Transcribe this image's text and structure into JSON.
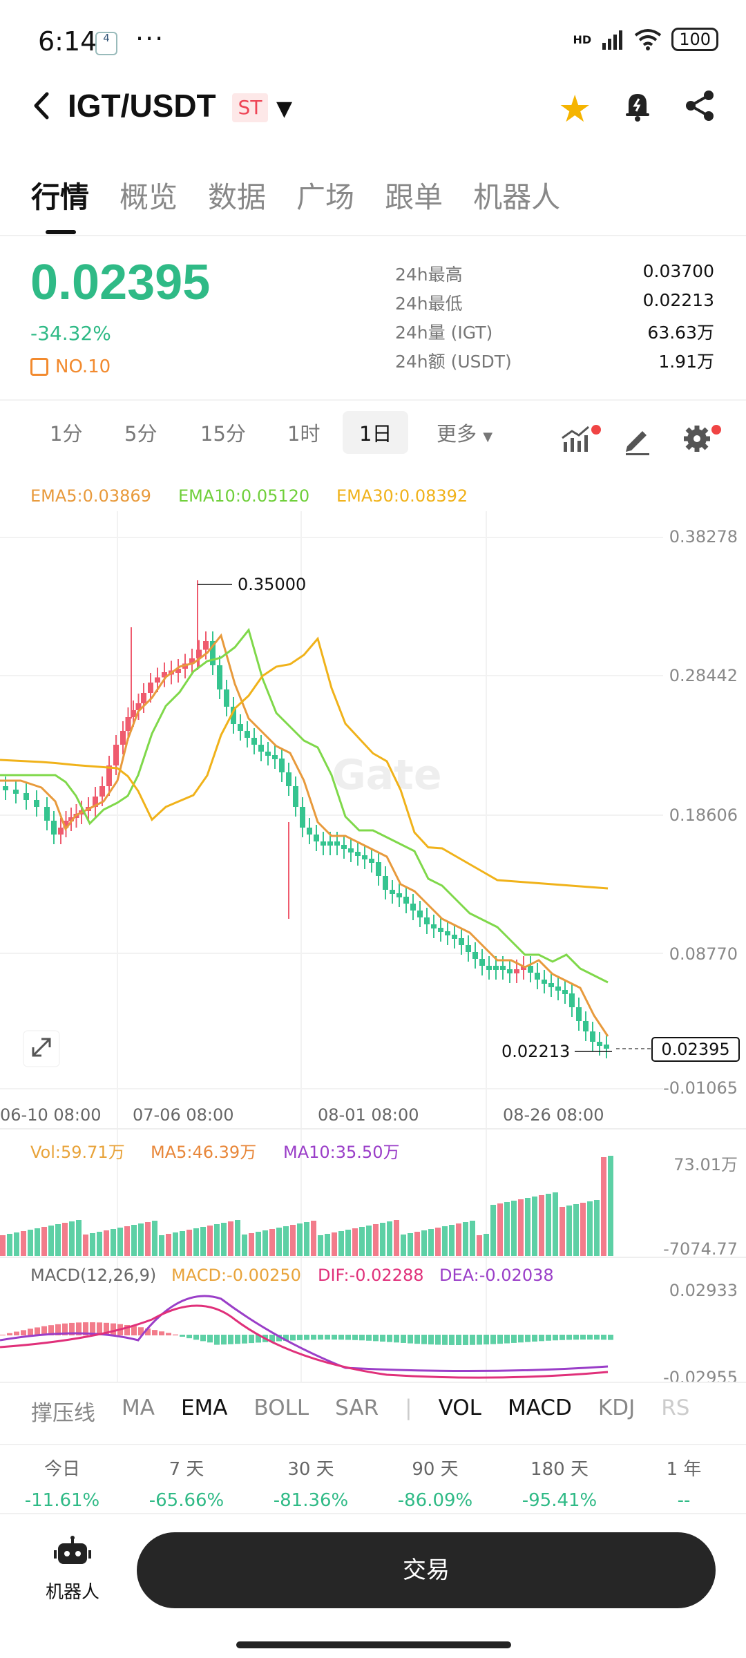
{
  "status_bar": {
    "time": "6:14",
    "badge": "4",
    "dots": "···",
    "network": "HD",
    "battery": "100"
  },
  "header": {
    "pair": "IGT/USDT",
    "tag": "ST"
  },
  "tabs": [
    "行情",
    "概览",
    "数据",
    "广场",
    "跟单",
    "机器人"
  ],
  "ticker": {
    "price": "0.02395",
    "change": "-34.32%",
    "rank": "NO.10",
    "stats": [
      {
        "label": "24h最高",
        "value": "0.03700"
      },
      {
        "label": "24h最低",
        "value": "0.02213"
      },
      {
        "label": "24h量 (IGT)",
        "value": "63.63万"
      },
      {
        "label": "24h额 (USDT)",
        "value": "1.91万"
      }
    ]
  },
  "intervals": [
    "1分",
    "5分",
    "15分",
    "1时",
    "1日",
    "更多"
  ],
  "ema_legend": {
    "ema5": "EMA5:0.03869",
    "ema10": "EMA10:0.05120",
    "ema30": "EMA30:0.08392"
  },
  "chart_data": {
    "type": "candlestick",
    "watermark": "Gate",
    "y_ticks": [
      "0.38278",
      "0.28442",
      "0.18606",
      "0.08770",
      "-0.01065"
    ],
    "x_ticks": [
      "06-10 08:00",
      "07-06 08:00",
      "08-01 08:00",
      "08-26 08:00"
    ],
    "high_label": "0.35000",
    "low_label": "0.02213",
    "last_label": "0.02395",
    "ylim": [
      -0.01065,
      0.38278
    ],
    "colors": {
      "up": "#ef5b6e",
      "down": "#35c48f",
      "ema5": "#e89a3c",
      "ema10": "#7fd84a",
      "ema30": "#f0b21a"
    }
  },
  "volume": {
    "vol": "Vol:59.71万",
    "ma5": "MA5:46.39万",
    "ma10": "MA10:35.50万",
    "top": "73.01万",
    "bottom": "-7074.77"
  },
  "macd": {
    "title": "MACD(12,26,9)",
    "macd": "MACD:-0.00250",
    "dif": "DIF:-0.02288",
    "dea": "DEA:-0.02038",
    "top": "0.02933",
    "bottom": "-0.02955"
  },
  "indicators": [
    "撑压线",
    "MA",
    "EMA",
    "BOLL",
    "SAR",
    "|",
    "VOL",
    "MACD",
    "KDJ",
    "RS"
  ],
  "periods": [
    {
      "label": "今日",
      "value": "-11.61%"
    },
    {
      "label": "7 天",
      "value": "-65.66%"
    },
    {
      "label": "30 天",
      "value": "-81.36%"
    },
    {
      "label": "90 天",
      "value": "-86.09%"
    },
    {
      "label": "180 天",
      "value": "-95.41%"
    },
    {
      "label": "1 年",
      "value": "--"
    }
  ],
  "bottom": {
    "robot": "机器人",
    "trade": "交易"
  }
}
